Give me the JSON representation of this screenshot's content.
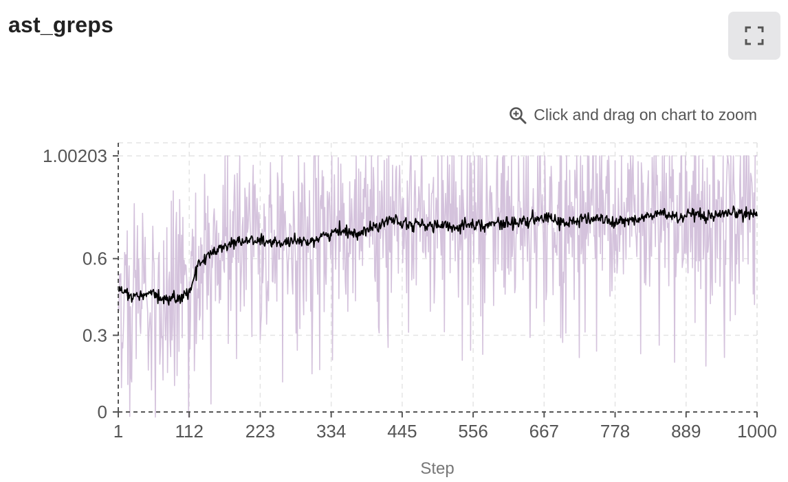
{
  "panel": {
    "title": "ast_greps",
    "expand_icon": "fullscreen-icon",
    "zoom_hint": "Click and drag on chart to zoom",
    "zoom_icon": "zoom-in-icon"
  },
  "colors": {
    "raw": "#d4c2dc",
    "smoothed": "#000000",
    "grid": "#e4e4e4",
    "axis": "#555555"
  },
  "chart_data": {
    "type": "line",
    "xlabel": "Step",
    "ylabel": "",
    "xlim": [
      1,
      1000
    ],
    "ylim": [
      0,
      1.00203
    ],
    "x_ticks": [
      1,
      112,
      223,
      334,
      445,
      556,
      667,
      778,
      889,
      1000
    ],
    "x_tick_labels": [
      "1",
      "112",
      "223",
      "334",
      "445",
      "556",
      "667",
      "778",
      "889",
      "1000"
    ],
    "y_ticks": [
      0,
      0.3,
      0.6,
      1.00203
    ],
    "y_tick_labels": [
      "0",
      "0.3",
      "0.6",
      "1.00203"
    ],
    "grid": true,
    "series": [
      {
        "role": "raw",
        "color": "#d4c2dc",
        "x": [
          1,
          25,
          50,
          75,
          100,
          125,
          150,
          175,
          200,
          225,
          250,
          275,
          300,
          325,
          350,
          375,
          400,
          425,
          450,
          475,
          500,
          525,
          550,
          575,
          600,
          625,
          650,
          675,
          700,
          725,
          750,
          775,
          800,
          825,
          850,
          875,
          900,
          925,
          950,
          975,
          1000
        ],
        "y": [
          0.47,
          0.45,
          0.46,
          0.44,
          0.44,
          0.55,
          0.63,
          0.66,
          0.67,
          0.67,
          0.66,
          0.66,
          0.67,
          0.69,
          0.71,
          0.7,
          0.72,
          0.76,
          0.74,
          0.73,
          0.73,
          0.72,
          0.74,
          0.73,
          0.74,
          0.74,
          0.75,
          0.76,
          0.74,
          0.75,
          0.76,
          0.74,
          0.75,
          0.76,
          0.78,
          0.76,
          0.77,
          0.76,
          0.77,
          0.78,
          0.77
        ]
      },
      {
        "role": "smoothed",
        "color": "#000000",
        "x": [
          1,
          25,
          50,
          75,
          100,
          112,
          125,
          150,
          175,
          200,
          225,
          250,
          275,
          300,
          325,
          350,
          375,
          400,
          425,
          450,
          475,
          500,
          525,
          550,
          575,
          600,
          625,
          650,
          675,
          700,
          725,
          750,
          775,
          800,
          825,
          850,
          875,
          900,
          925,
          950,
          975,
          1000
        ],
        "y": [
          0.48,
          0.45,
          0.46,
          0.44,
          0.45,
          0.47,
          0.57,
          0.63,
          0.66,
          0.67,
          0.67,
          0.66,
          0.66,
          0.67,
          0.69,
          0.71,
          0.7,
          0.72,
          0.76,
          0.74,
          0.73,
          0.73,
          0.72,
          0.74,
          0.73,
          0.74,
          0.74,
          0.75,
          0.76,
          0.74,
          0.75,
          0.76,
          0.74,
          0.75,
          0.76,
          0.78,
          0.76,
          0.77,
          0.76,
          0.77,
          0.78,
          0.77
        ]
      }
    ]
  }
}
